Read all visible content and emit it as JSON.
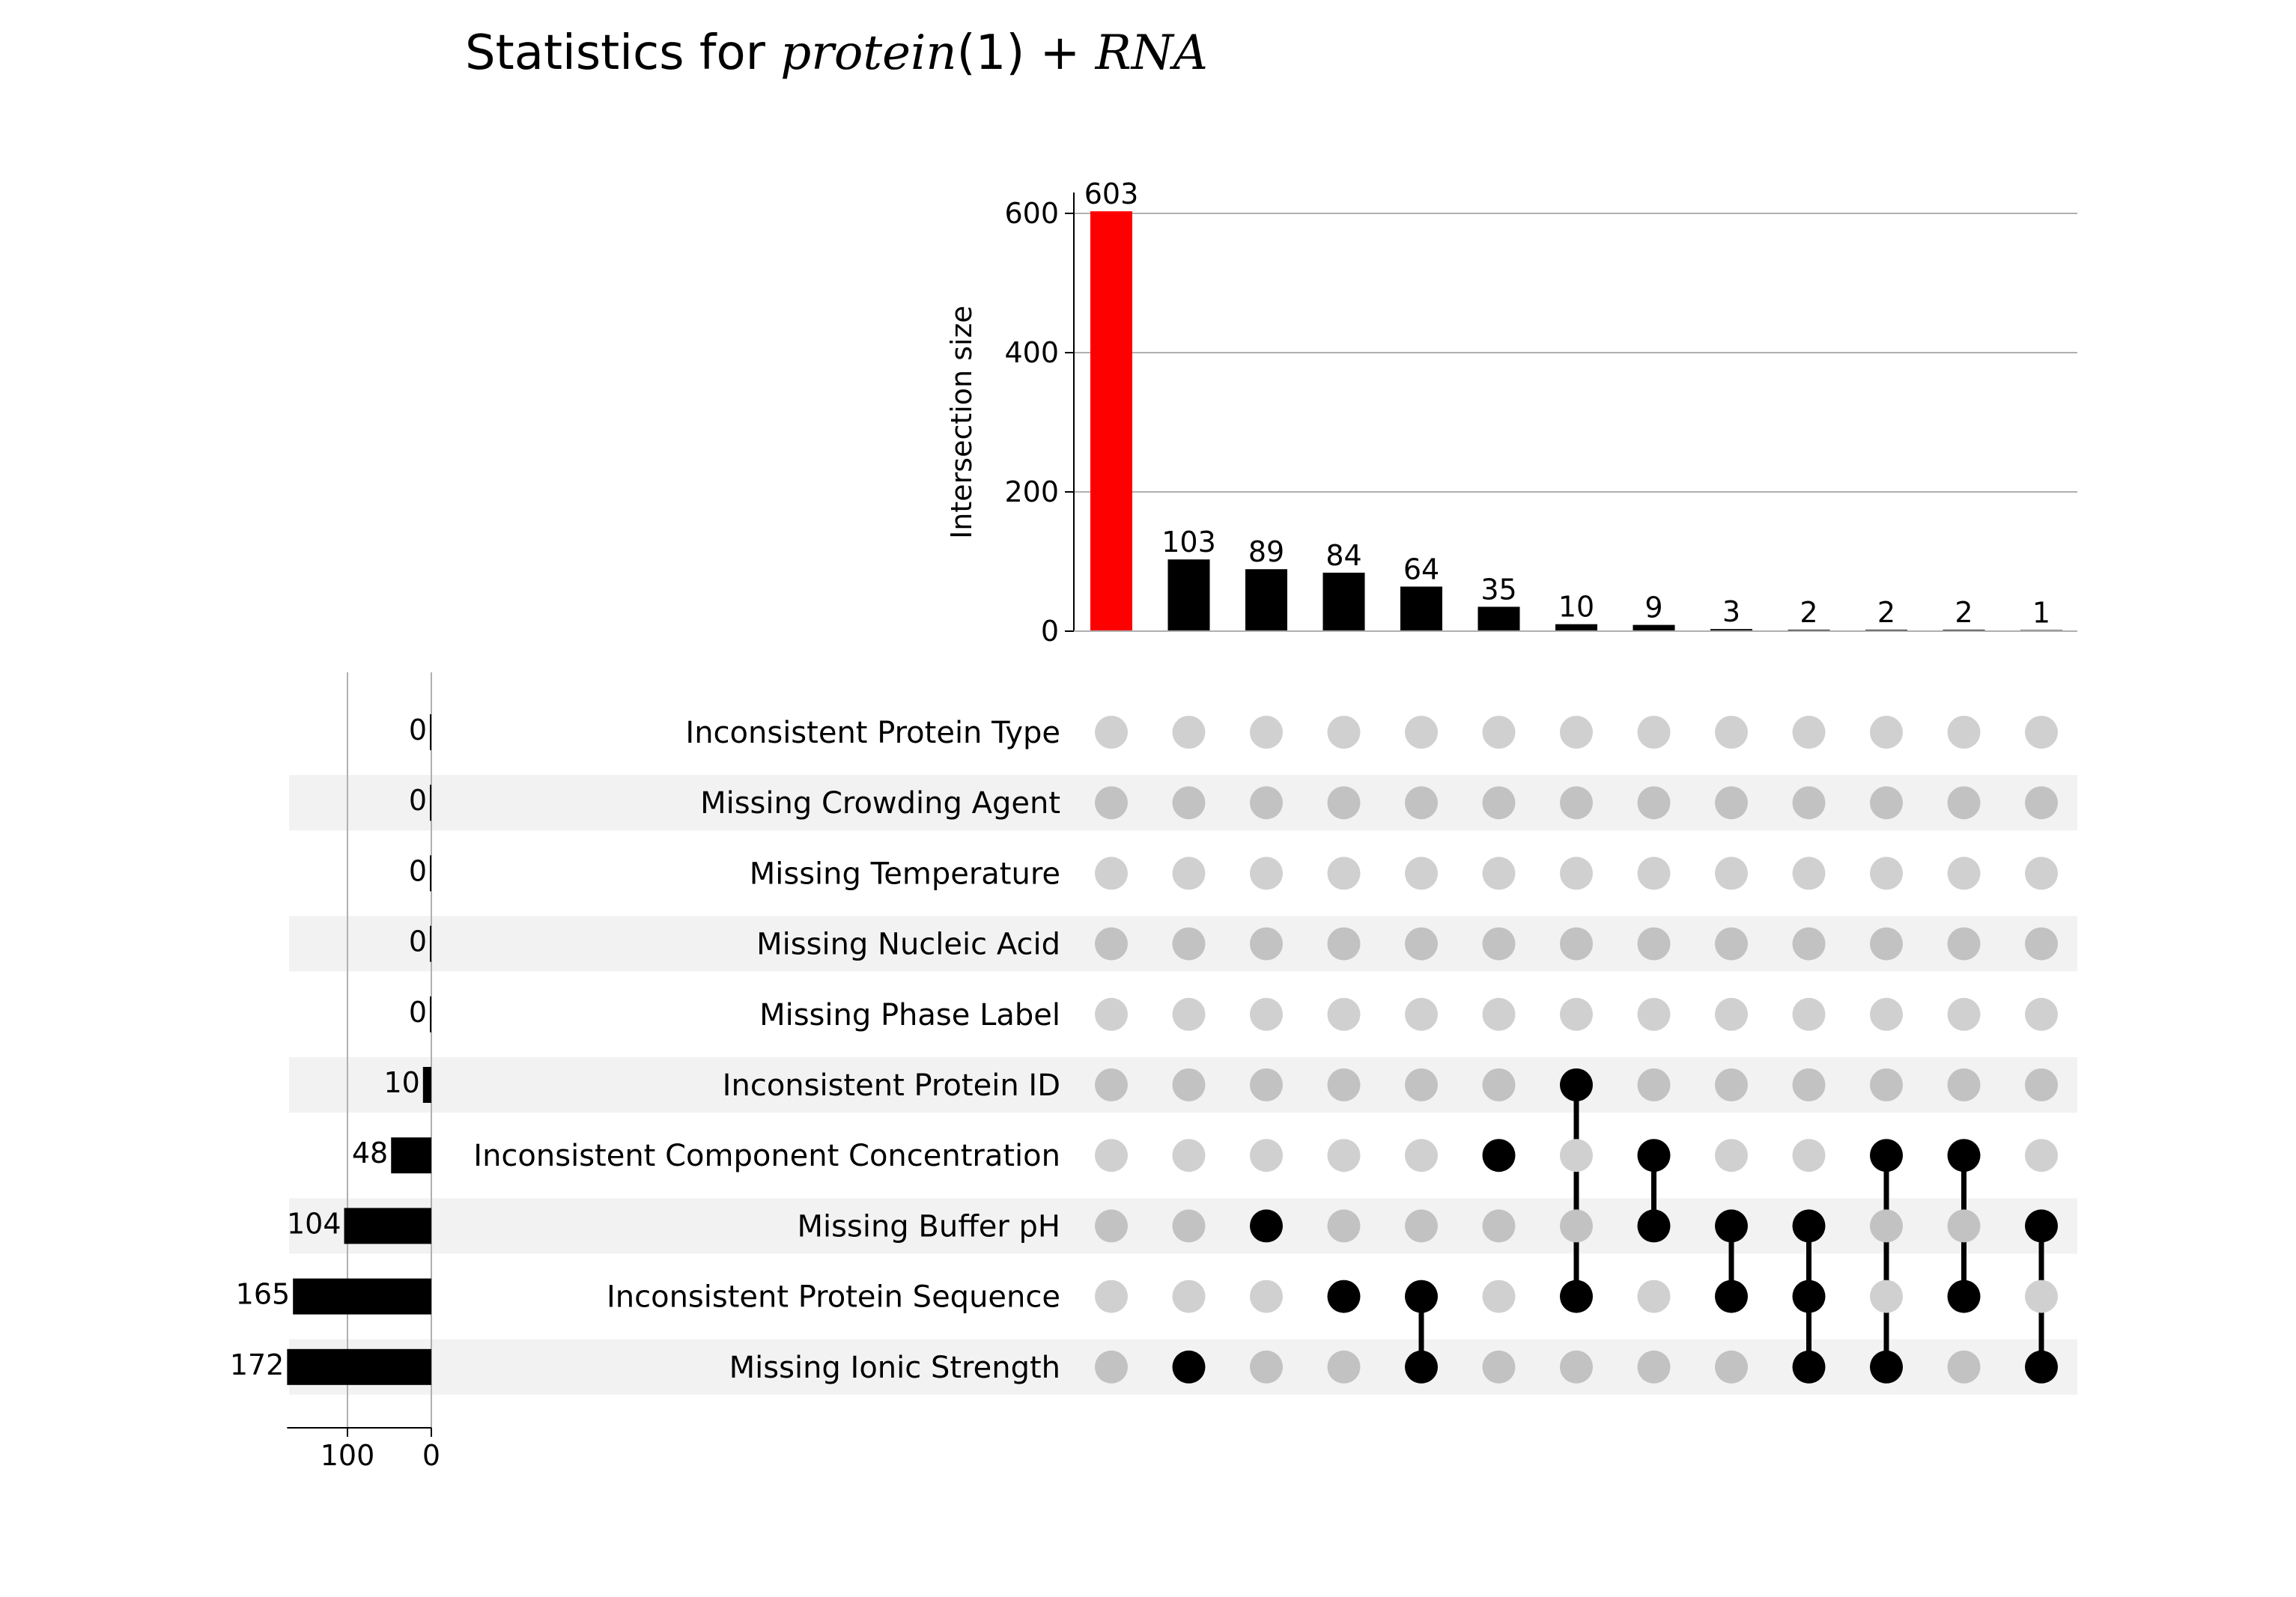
{
  "chart_data": {
    "type": "upset",
    "title": "Statistics for protein(1) + RNA",
    "title_parts": {
      "prefix": "Statistics for ",
      "math_a": "protein",
      "math_b": "(1) + ",
      "math_c": "RNA"
    },
    "ylabel": "Intersection size",
    "ylim": [
      0,
      630
    ],
    "yticks": [
      "0",
      "200",
      "400",
      "600"
    ],
    "grid": true,
    "sets": [
      {
        "name": "Inconsistent Protein Type",
        "size": 0
      },
      {
        "name": "Missing Crowding Agent",
        "size": 0
      },
      {
        "name": "Missing Temperature",
        "size": 0
      },
      {
        "name": "Missing Nucleic Acid",
        "size": 0
      },
      {
        "name": "Missing Phase Label",
        "size": 0
      },
      {
        "name": "Inconsistent Protein ID",
        "size": 10
      },
      {
        "name": "Inconsistent Component Concentration",
        "size": 48
      },
      {
        "name": "Missing Buffer pH",
        "size": 104
      },
      {
        "name": "Inconsistent Protein Sequence",
        "size": 165
      },
      {
        "name": "Missing Ionic Strength",
        "size": 172
      }
    ],
    "set_size_axis": {
      "ticks": [
        "100",
        "0"
      ],
      "tick_values": [
        100,
        0
      ],
      "max": 172
    },
    "intersections": [
      {
        "size": 603,
        "members": [],
        "color": "#ff0000"
      },
      {
        "size": 103,
        "members": [
          9
        ],
        "color": "#000000"
      },
      {
        "size": 89,
        "members": [
          7
        ],
        "color": "#000000"
      },
      {
        "size": 84,
        "members": [
          8
        ],
        "color": "#000000"
      },
      {
        "size": 64,
        "members": [
          8,
          9
        ],
        "color": "#000000"
      },
      {
        "size": 35,
        "members": [
          6
        ],
        "color": "#000000"
      },
      {
        "size": 10,
        "members": [
          5,
          8
        ],
        "color": "#000000"
      },
      {
        "size": 9,
        "members": [
          6,
          7
        ],
        "color": "#000000"
      },
      {
        "size": 3,
        "members": [
          7,
          8
        ],
        "color": "#000000"
      },
      {
        "size": 2,
        "members": [
          7,
          8,
          9
        ],
        "color": "#000000"
      },
      {
        "size": 2,
        "members": [
          6,
          9
        ],
        "color": "#000000"
      },
      {
        "size": 2,
        "members": [
          6,
          8
        ],
        "color": "#000000"
      },
      {
        "size": 1,
        "members": [
          7,
          9
        ],
        "color": "#000000"
      }
    ],
    "colors": {
      "active_dot": "#000000",
      "inactive_dot_light_row": "#d0d0d0",
      "inactive_dot_shaded_row": "#c2c2c2",
      "row_shade": "#f2f2f2",
      "grid": "#b0b0b0"
    }
  }
}
